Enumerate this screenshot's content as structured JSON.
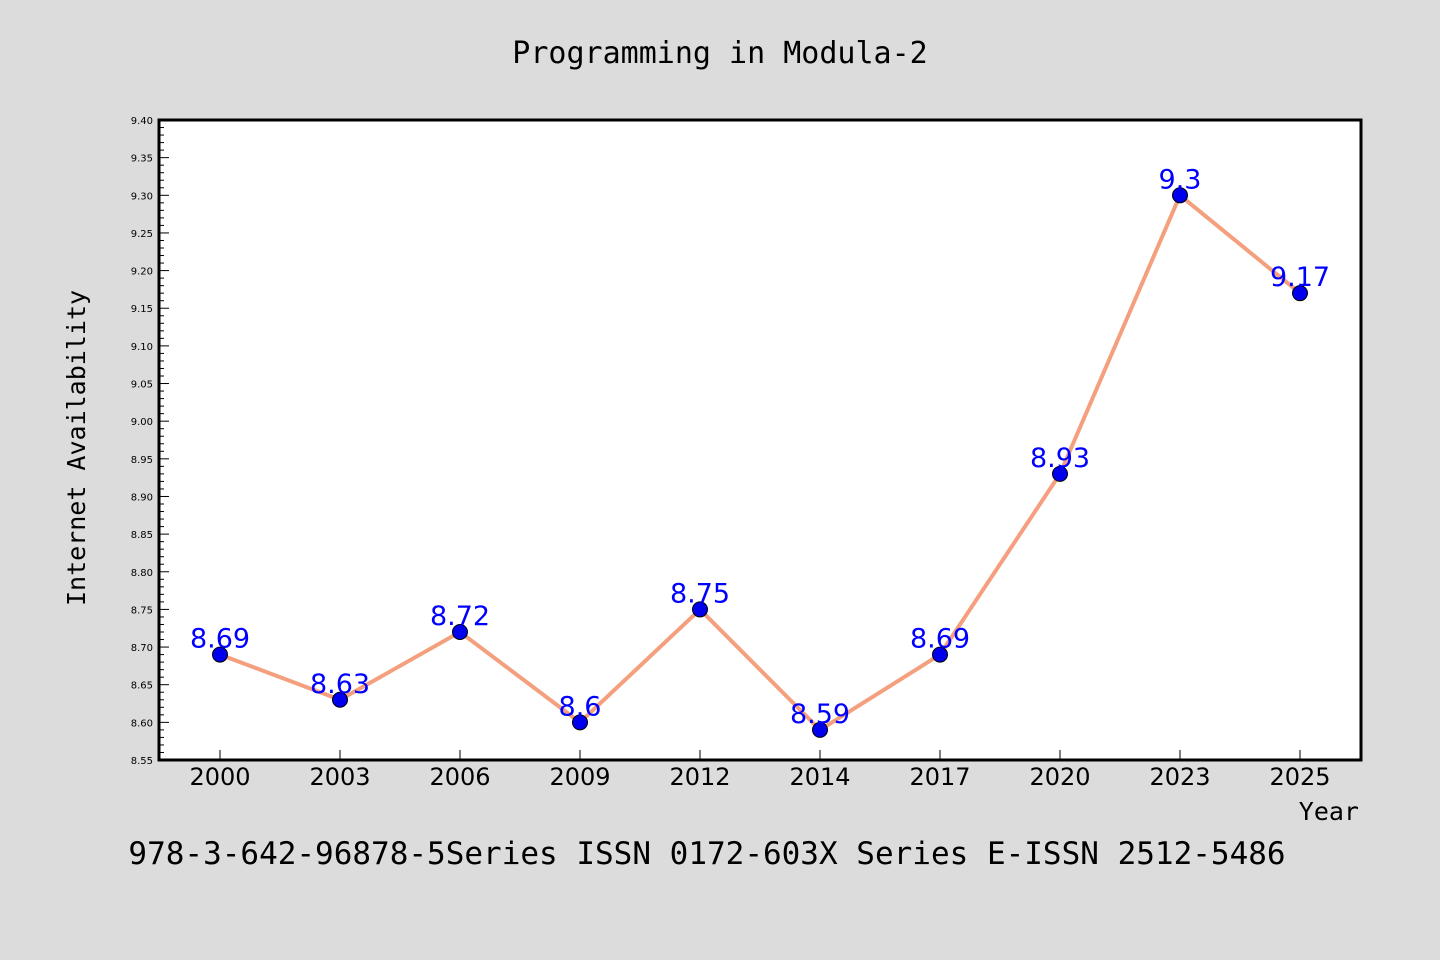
{
  "chart_data": {
    "type": "line",
    "title": "Programming in Modula-2",
    "xlabel": "Year",
    "ylabel": "Internet Availability",
    "categories": [
      "2000",
      "2003",
      "2006",
      "2009",
      "2012",
      "2014",
      "2017",
      "2020",
      "2023",
      "2025"
    ],
    "values": [
      8.69,
      8.63,
      8.72,
      8.6,
      8.75,
      8.59,
      8.69,
      8.93,
      9.3,
      9.17
    ],
    "data_labels": [
      "8.69",
      "8.63",
      "8.72",
      "8.6",
      "8.75",
      "8.59",
      "8.69",
      "8.93",
      "9.3",
      "9.17"
    ],
    "ylim": [
      8.55,
      9.4
    ],
    "yticks": [
      "8.55",
      "8.60",
      "8.65",
      "8.70",
      "8.75",
      "8.80",
      "8.85",
      "8.90",
      "8.95",
      "9.00",
      "9.05",
      "9.10",
      "9.15",
      "9.20",
      "9.25",
      "9.30",
      "9.35",
      "9.40"
    ],
    "grid": false,
    "legend": "none",
    "line_color": "#f4a07e",
    "marker_color": "#0000ee",
    "label_color": "#0000ff"
  },
  "footer": "978-3-642-96878-5Series ISSN 0172-603X Series E-ISSN 2512-5486",
  "colors": {
    "background": "#dcdcdc",
    "plot_background": "#ffffff"
  }
}
